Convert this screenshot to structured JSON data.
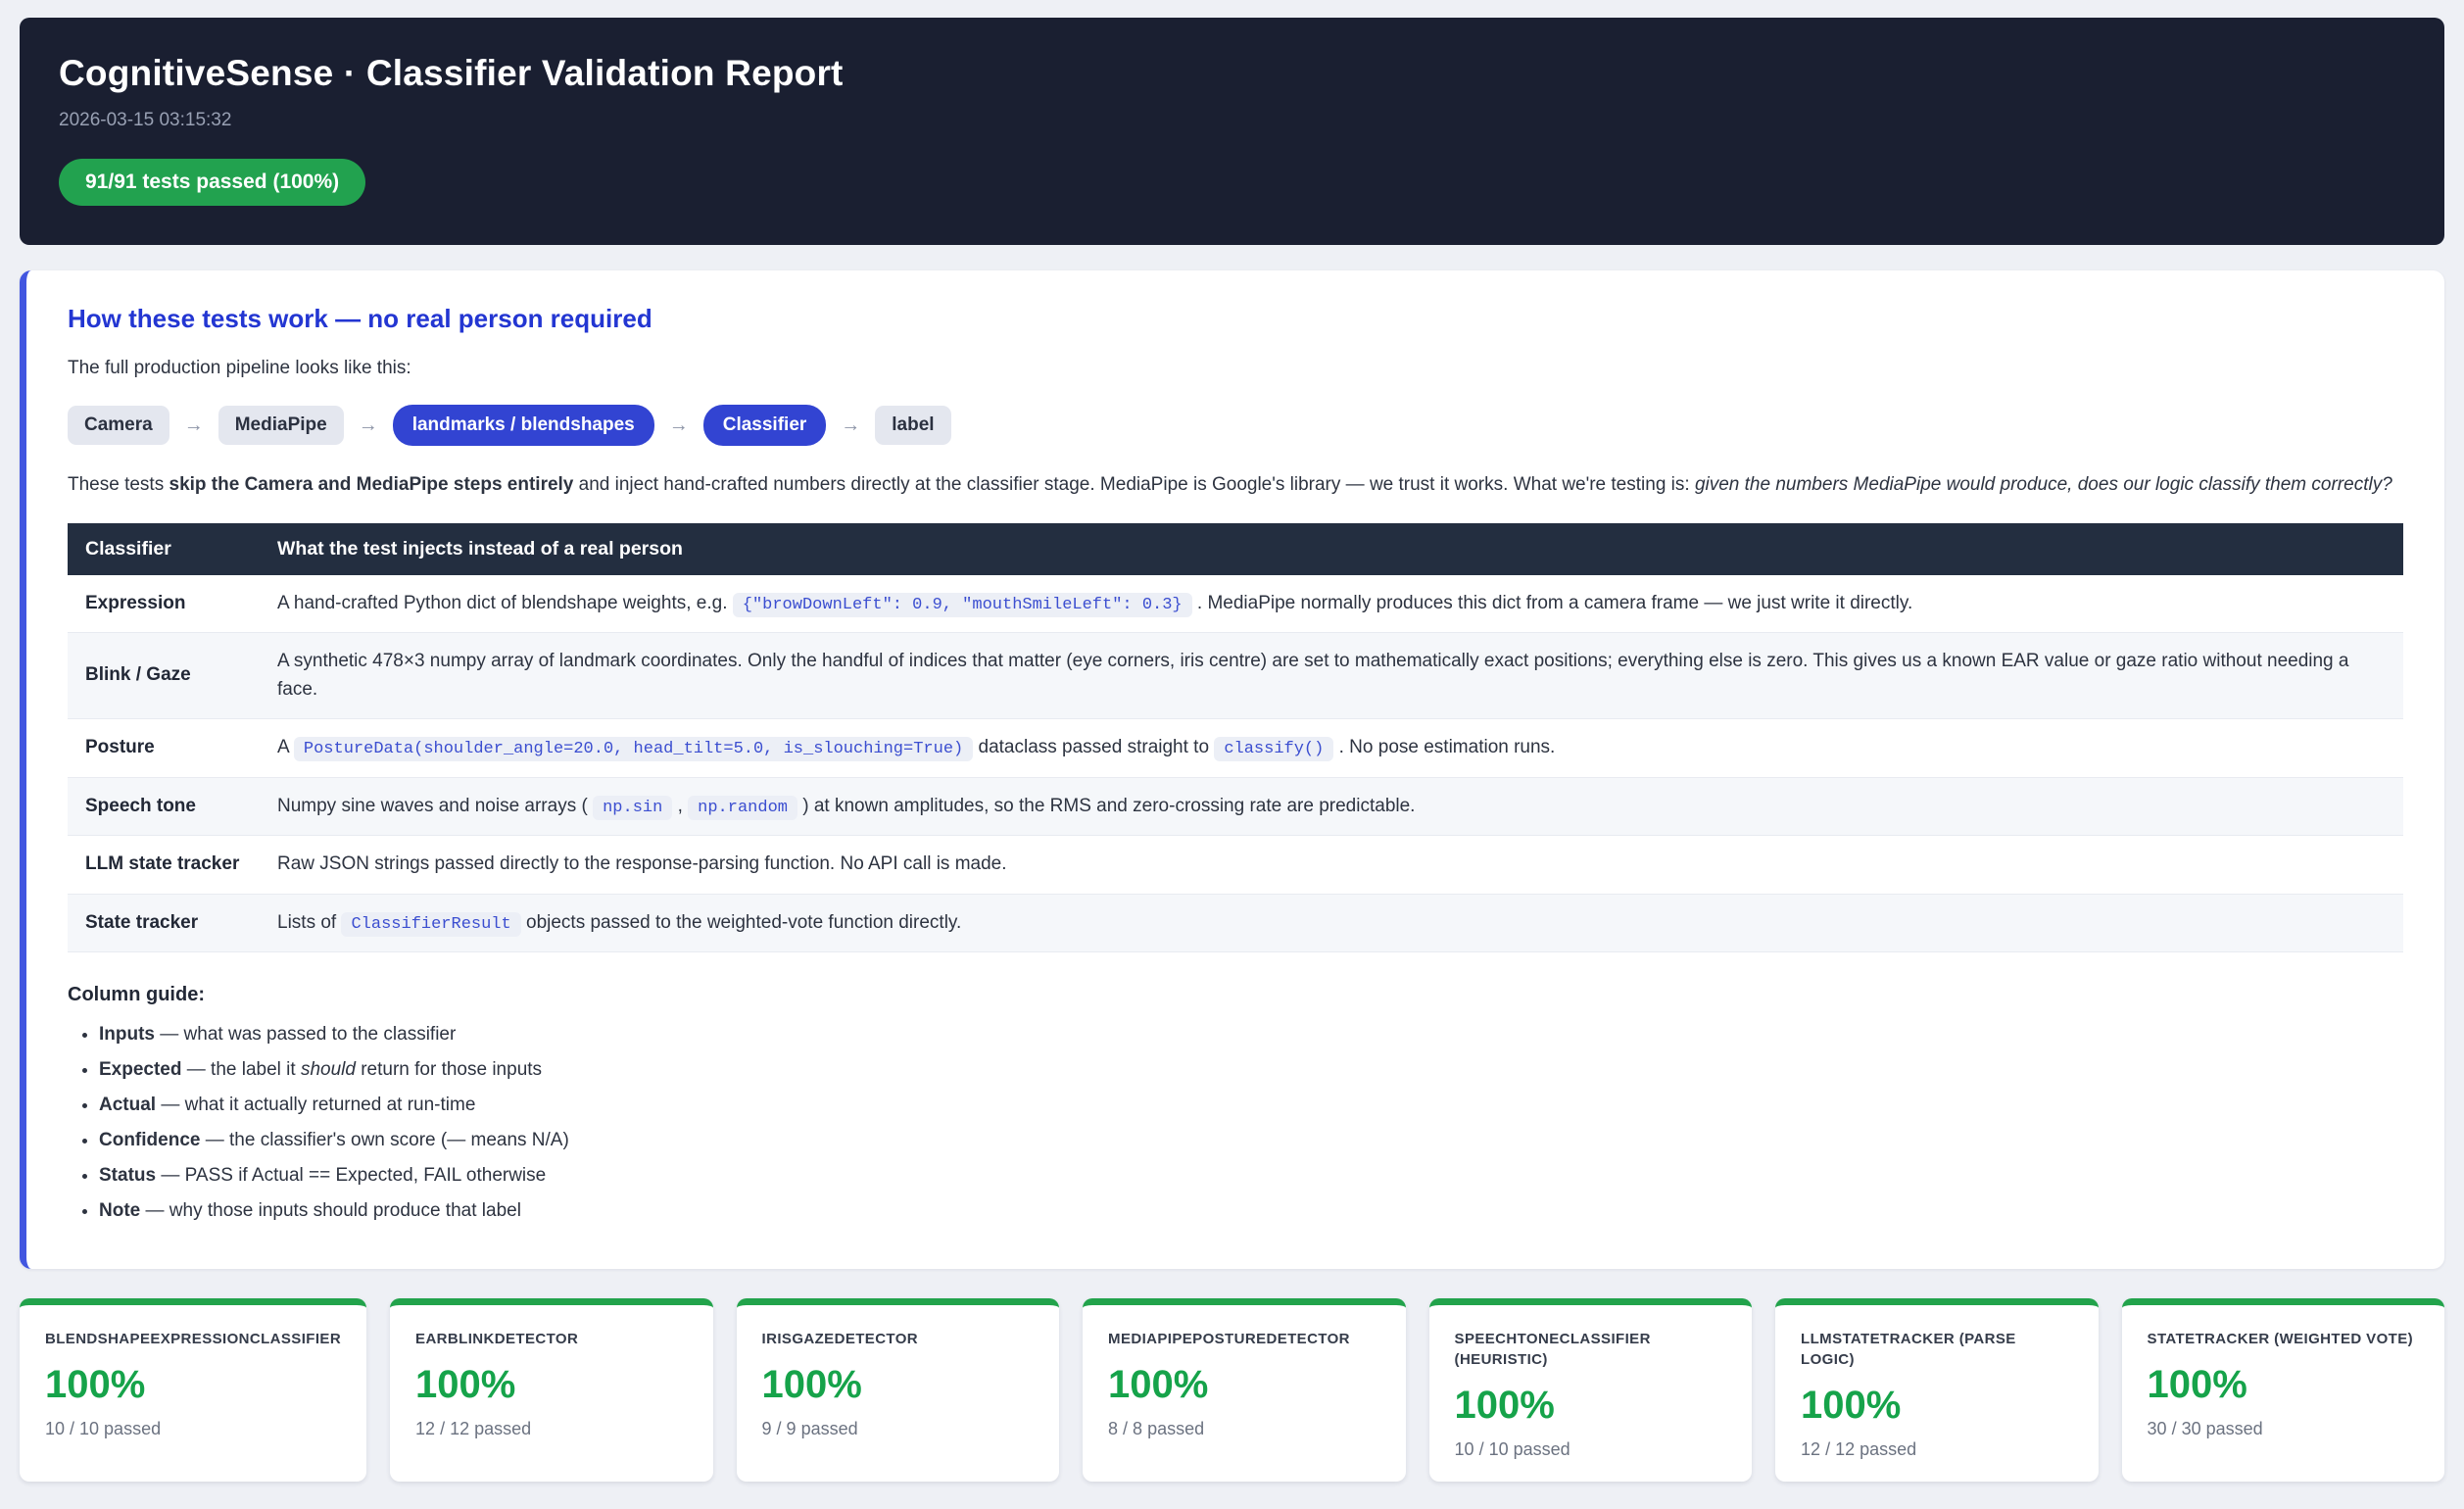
{
  "colors": {
    "header_bg": "#1a1f31",
    "badge_green": "#22a24f",
    "accent_blue": "#2336d2",
    "chip_blue": "#3244d2",
    "table_header_bg": "#232e40",
    "card_green": "#22a34b",
    "percent_green": "#16a34a",
    "code_text": "#3b4ed0",
    "code_bg": "#eceff6"
  },
  "header": {
    "title": "CognitiveSense · Classifier Validation Report",
    "timestamp": "2026-03-15 03:15:32",
    "badge": "91/91 tests passed (100%)"
  },
  "intro": {
    "heading": "How these tests work — no real person required",
    "pipeline_label": "The full production pipeline looks like this:",
    "arrow": "→",
    "pipeline": [
      {
        "label": "Camera",
        "style": "gray"
      },
      {
        "label": "MediaPipe",
        "style": "gray"
      },
      {
        "label": "landmarks / blendshapes",
        "style": "blue"
      },
      {
        "label": "Classifier",
        "style": "blue"
      },
      {
        "label": "label",
        "style": "gray"
      }
    ],
    "paragraph": [
      {
        "t": "text",
        "v": "These tests "
      },
      {
        "t": "bold",
        "v": "skip the Camera and MediaPipe steps entirely"
      },
      {
        "t": "text",
        "v": " and inject hand-crafted numbers directly at the classifier stage. MediaPipe is Google's library — we trust it works. What we're testing is: "
      },
      {
        "t": "italic",
        "v": "given the numbers MediaPipe would produce, does our logic classify them correctly?"
      }
    ]
  },
  "table": {
    "headers": [
      "Classifier",
      "What the test injects instead of a real person"
    ],
    "rows": [
      {
        "name": "Expression",
        "desc": [
          {
            "t": "text",
            "v": "A hand-crafted Python dict of blendshape weights, e.g. "
          },
          {
            "t": "code",
            "v": "{\"browDownLeft\": 0.9, \"mouthSmileLeft\": 0.3}"
          },
          {
            "t": "text",
            "v": " . MediaPipe normally produces this dict from a camera frame — we just write it directly."
          }
        ]
      },
      {
        "name": "Blink / Gaze",
        "desc": [
          {
            "t": "text",
            "v": "A synthetic 478×3 numpy array of landmark coordinates. Only the handful of indices that matter (eye corners, iris centre) are set to mathematically exact positions; everything else is zero. This gives us a known EAR value or gaze ratio without needing a face."
          }
        ]
      },
      {
        "name": "Posture",
        "desc": [
          {
            "t": "text",
            "v": "A "
          },
          {
            "t": "code",
            "v": "PostureData(shoulder_angle=20.0, head_tilt=5.0, is_slouching=True)"
          },
          {
            "t": "text",
            "v": " dataclass passed straight to "
          },
          {
            "t": "code",
            "v": "classify()"
          },
          {
            "t": "text",
            "v": " . No pose estimation runs."
          }
        ]
      },
      {
        "name": "Speech tone",
        "desc": [
          {
            "t": "text",
            "v": "Numpy sine waves and noise arrays ( "
          },
          {
            "t": "code",
            "v": "np.sin"
          },
          {
            "t": "text",
            "v": " , "
          },
          {
            "t": "code",
            "v": "np.random"
          },
          {
            "t": "text",
            "v": " ) at known amplitudes, so the RMS and zero-crossing rate are predictable."
          }
        ]
      },
      {
        "name": "LLM state tracker",
        "desc": [
          {
            "t": "text",
            "v": "Raw JSON strings passed directly to the response-parsing function. No API call is made."
          }
        ]
      },
      {
        "name": "State tracker",
        "desc": [
          {
            "t": "text",
            "v": "Lists of "
          },
          {
            "t": "code",
            "v": "ClassifierResult"
          },
          {
            "t": "text",
            "v": " objects passed to the weighted-vote function directly."
          }
        ]
      }
    ]
  },
  "guide": {
    "heading": "Column guide:",
    "items": [
      [
        {
          "t": "bold",
          "v": "Inputs"
        },
        {
          "t": "text",
          "v": " — what was passed to the classifier"
        }
      ],
      [
        {
          "t": "bold",
          "v": "Expected"
        },
        {
          "t": "text",
          "v": " — the label it "
        },
        {
          "t": "italic",
          "v": "should"
        },
        {
          "t": "text",
          "v": " return for those inputs"
        }
      ],
      [
        {
          "t": "bold",
          "v": "Actual"
        },
        {
          "t": "text",
          "v": " — what it actually returned at run-time"
        }
      ],
      [
        {
          "t": "bold",
          "v": "Confidence"
        },
        {
          "t": "text",
          "v": " — the classifier's own score (— means N/A)"
        }
      ],
      [
        {
          "t": "bold",
          "v": "Status"
        },
        {
          "t": "text",
          "v": " — PASS if Actual == Expected, FAIL otherwise"
        }
      ],
      [
        {
          "t": "bold",
          "v": "Note"
        },
        {
          "t": "text",
          "v": " — why those inputs should produce that label"
        }
      ]
    ]
  },
  "cards": [
    {
      "title": "BLENDSHAPEEXPRESSIONCLASSIFIER",
      "percent": "100%",
      "sub": "10 / 10 passed"
    },
    {
      "title": "EARBLINKDETECTOR",
      "percent": "100%",
      "sub": "12 / 12 passed"
    },
    {
      "title": "IRISGAZEDETECTOR",
      "percent": "100%",
      "sub": "9 / 9 passed"
    },
    {
      "title": "MEDIAPIPEPOSTUREDETECTOR",
      "percent": "100%",
      "sub": "8 / 8 passed"
    },
    {
      "title": "SPEECHTONECLASSIFIER (HEURISTIC)",
      "percent": "100%",
      "sub": "10 / 10 passed"
    },
    {
      "title": "LLMSTATETRACKER (PARSE LOGIC)",
      "percent": "100%",
      "sub": "12 / 12 passed"
    },
    {
      "title": "STATETRACKER (WEIGHTED VOTE)",
      "percent": "100%",
      "sub": "30 / 30 passed"
    }
  ]
}
